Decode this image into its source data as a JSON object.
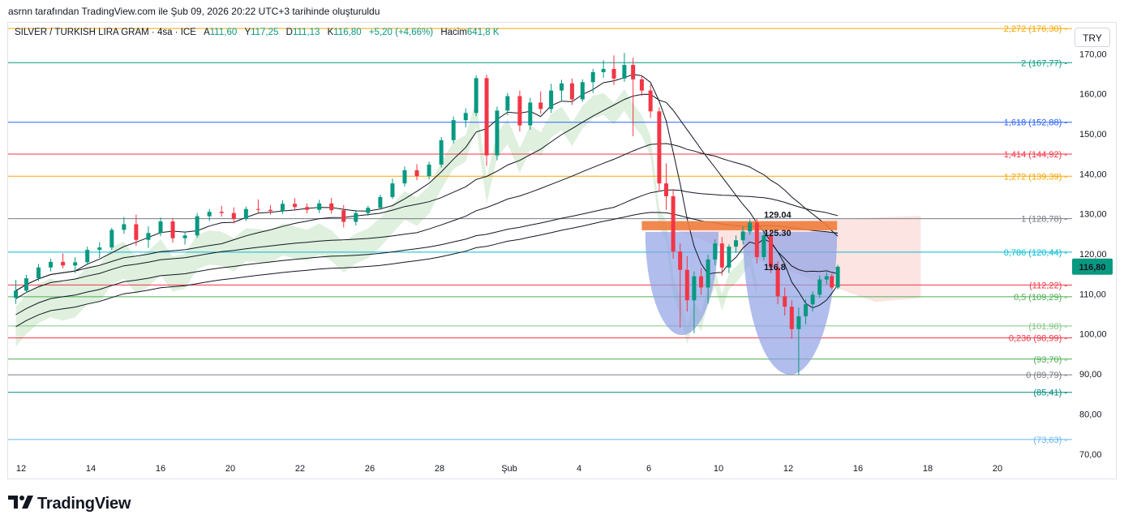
{
  "header": {
    "note": "asrnn tarafından TradingView.com ile Şub 09, 2026 20:22 UTC+3 tarihinde oluşturuldu"
  },
  "legend": {
    "symbol": "SILVER / TURKISH LIRA GRAM · 4sa · ICE",
    "open_label": "A",
    "open": "111,60",
    "high_label": "Y",
    "high": "117,25",
    "low_label": "D",
    "low": "111,13",
    "close_label": "K",
    "close": "116,80",
    "change": "+5,20 (+4,66%)",
    "volume_label": "Hacim",
    "volume": "641,8 K"
  },
  "currency_button": "TRY",
  "logo": {
    "text": "TradingView",
    "icon": "tradingview-logo-icon"
  },
  "colors": {
    "up": "#089981",
    "down": "#f23645",
    "pattern_fill": "#8fa1e6",
    "zone": "#f07c3c",
    "cloud": "#b8ddb5",
    "cloud_red": "#f8c9c5"
  },
  "chart_data": {
    "type": "candlestick",
    "symbol": "SILVER / TURKISH LIRA GRAM",
    "interval": "4sa",
    "y_axis": {
      "ylim": [
        70,
        172
      ],
      "ticks": [
        "70,00",
        "80,00",
        "90,00",
        "100,00",
        "110,00",
        "120,00",
        "130,00",
        "140,00",
        "150,00",
        "160,00",
        "170,00"
      ],
      "position": "right"
    },
    "x_axis": {
      "ticks": [
        "12",
        "14",
        "16",
        "20",
        "22",
        "26",
        "28",
        "Şub",
        "4",
        "6",
        "10",
        "12",
        "16",
        "18",
        "20"
      ],
      "tick_days": [
        12,
        14,
        16,
        18,
        20,
        22,
        24,
        26,
        28,
        30,
        32,
        34,
        36,
        38,
        40
      ]
    },
    "last_price": {
      "label": "116,80",
      "value": 116.8
    },
    "fib_levels": [
      {
        "label": "2,272 (176,30)",
        "value": 176.3,
        "color": "#f7a600"
      },
      {
        "label": "2 (167,77)",
        "value": 167.77,
        "color": "#089981"
      },
      {
        "label": "1,618 (152,88)",
        "value": 152.88,
        "color": "#2962ff"
      },
      {
        "label": "1,414 (144,92)",
        "value": 144.92,
        "color": "#f23645"
      },
      {
        "label": "1,272 (139,39)",
        "value": 139.39,
        "color": "#f7a600"
      },
      {
        "label": "1 (128,78)",
        "value": 128.78,
        "color": "#787b86"
      },
      {
        "label": "0,786 (120,44)",
        "value": 120.44,
        "color": "#00bcd4"
      },
      {
        "label": "(112,22)",
        "value": 112.22,
        "color": "#f23645"
      },
      {
        "label": "0,5 (109,29)",
        "value": 109.29,
        "color": "#4caf50"
      },
      {
        "label": "(101,98)",
        "value": 101.98,
        "color": "#81c784"
      },
      {
        "label": "0,236 (98,99)",
        "value": 98.99,
        "color": "#f23645"
      },
      {
        "label": "(93,70)",
        "value": 93.7,
        "color": "#4caf50"
      },
      {
        "label": "0 (89,79)",
        "value": 89.79,
        "color": "#787b86"
      },
      {
        "label": "(85,41)",
        "value": 85.41,
        "color": "#00897b"
      },
      {
        "label": "(73,63)",
        "value": 73.63,
        "color": "#64b5f6"
      }
    ],
    "annotations": [
      {
        "text": "129.04",
        "value": 129.04,
        "day": 32.4
      },
      {
        "text": "125.30",
        "value": 125.3,
        "day": 32.4
      },
      {
        "text": "116.8",
        "value": 116.8,
        "day": 32.4
      }
    ],
    "resistance_zone": {
      "day_start": 23.4,
      "day_end": 33.2,
      "top": 128.2,
      "bottom": 125.9
    },
    "cup_shapes": [
      {
        "day_start": 29.9,
        "day_end": 32.0,
        "top": 125.5,
        "bottom": 99.7
      },
      {
        "day_start": 32.7,
        "day_end": 35.4,
        "top": 125.5,
        "bottom": 89.8
      }
    ],
    "candles": [
      {
        "d": 11.85,
        "o": 109.0,
        "h": 113.5,
        "l": 107.5,
        "c": 110.8
      },
      {
        "d": 12.15,
        "o": 110.8,
        "h": 114.8,
        "l": 110.2,
        "c": 113.9
      },
      {
        "d": 12.5,
        "o": 113.9,
        "h": 117.5,
        "l": 113.2,
        "c": 116.6
      },
      {
        "d": 12.85,
        "o": 116.6,
        "h": 118.8,
        "l": 115.6,
        "c": 118.0
      },
      {
        "d": 13.2,
        "o": 118.0,
        "h": 120.1,
        "l": 116.4,
        "c": 117.1
      },
      {
        "d": 13.55,
        "o": 117.1,
        "h": 119.2,
        "l": 115.2,
        "c": 117.9
      },
      {
        "d": 13.9,
        "o": 117.9,
        "h": 121.8,
        "l": 117.2,
        "c": 121.0
      },
      {
        "d": 14.25,
        "o": 121.0,
        "h": 122.9,
        "l": 119.0,
        "c": 121.6
      },
      {
        "d": 14.6,
        "o": 121.6,
        "h": 126.5,
        "l": 121.0,
        "c": 126.0
      },
      {
        "d": 14.95,
        "o": 126.0,
        "h": 129.2,
        "l": 125.0,
        "c": 127.4
      },
      {
        "d": 15.3,
        "o": 127.4,
        "h": 129.8,
        "l": 122.0,
        "c": 123.5
      },
      {
        "d": 15.65,
        "o": 123.5,
        "h": 126.9,
        "l": 121.5,
        "c": 125.2
      },
      {
        "d": 16.0,
        "o": 125.2,
        "h": 129.1,
        "l": 124.4,
        "c": 128.1
      },
      {
        "d": 16.35,
        "o": 128.1,
        "h": 128.9,
        "l": 122.8,
        "c": 123.9
      },
      {
        "d": 16.7,
        "o": 123.9,
        "h": 125.6,
        "l": 122.3,
        "c": 124.6
      },
      {
        "d": 17.05,
        "o": 124.6,
        "h": 130.2,
        "l": 124.0,
        "c": 129.4
      },
      {
        "d": 17.4,
        "o": 129.4,
        "h": 131.2,
        "l": 128.2,
        "c": 130.5
      },
      {
        "d": 17.75,
        "o": 130.5,
        "h": 132.0,
        "l": 129.3,
        "c": 130.2
      },
      {
        "d": 18.1,
        "o": 130.2,
        "h": 131.6,
        "l": 127.6,
        "c": 128.7
      },
      {
        "d": 18.45,
        "o": 128.7,
        "h": 131.8,
        "l": 128.2,
        "c": 131.2
      },
      {
        "d": 18.8,
        "o": 131.2,
        "h": 133.6,
        "l": 130.3,
        "c": 131.0
      },
      {
        "d": 19.15,
        "o": 131.0,
        "h": 132.2,
        "l": 129.8,
        "c": 130.7
      },
      {
        "d": 19.5,
        "o": 130.7,
        "h": 133.4,
        "l": 130.0,
        "c": 132.5
      },
      {
        "d": 19.85,
        "o": 132.5,
        "h": 133.9,
        "l": 130.8,
        "c": 131.7
      },
      {
        "d": 20.2,
        "o": 131.7,
        "h": 132.6,
        "l": 130.1,
        "c": 131.0
      },
      {
        "d": 20.55,
        "o": 131.0,
        "h": 133.5,
        "l": 130.2,
        "c": 132.6
      },
      {
        "d": 20.9,
        "o": 132.6,
        "h": 134.0,
        "l": 130.0,
        "c": 130.9
      },
      {
        "d": 21.25,
        "o": 130.9,
        "h": 132.2,
        "l": 126.6,
        "c": 128.0
      },
      {
        "d": 21.6,
        "o": 128.0,
        "h": 131.0,
        "l": 127.1,
        "c": 130.2
      },
      {
        "d": 21.95,
        "o": 130.2,
        "h": 132.0,
        "l": 129.5,
        "c": 131.5
      },
      {
        "d": 22.3,
        "o": 131.5,
        "h": 134.8,
        "l": 131.0,
        "c": 134.2
      },
      {
        "d": 22.65,
        "o": 134.2,
        "h": 138.8,
        "l": 133.7,
        "c": 137.6
      },
      {
        "d": 23.0,
        "o": 137.6,
        "h": 141.8,
        "l": 136.8,
        "c": 140.9
      },
      {
        "d": 23.35,
        "o": 140.9,
        "h": 142.4,
        "l": 138.4,
        "c": 139.4
      },
      {
        "d": 23.7,
        "o": 139.4,
        "h": 143.0,
        "l": 138.6,
        "c": 142.3
      },
      {
        "d": 24.05,
        "o": 142.3,
        "h": 149.2,
        "l": 141.6,
        "c": 148.4
      },
      {
        "d": 24.4,
        "o": 148.4,
        "h": 154.3,
        "l": 147.6,
        "c": 153.4
      },
      {
        "d": 24.75,
        "o": 153.4,
        "h": 156.4,
        "l": 151.6,
        "c": 155.2
      },
      {
        "d": 25.05,
        "o": 155.2,
        "h": 164.6,
        "l": 154.4,
        "c": 163.9
      },
      {
        "d": 25.35,
        "o": 163.9,
        "h": 164.8,
        "l": 142.0,
        "c": 144.6
      },
      {
        "d": 25.65,
        "o": 144.6,
        "h": 156.8,
        "l": 143.4,
        "c": 155.8
      },
      {
        "d": 25.95,
        "o": 155.8,
        "h": 160.2,
        "l": 154.6,
        "c": 159.4
      },
      {
        "d": 26.3,
        "o": 159.4,
        "h": 160.8,
        "l": 150.6,
        "c": 152.1
      },
      {
        "d": 26.6,
        "o": 152.1,
        "h": 159.0,
        "l": 151.0,
        "c": 157.8
      },
      {
        "d": 26.9,
        "o": 157.8,
        "h": 160.6,
        "l": 155.0,
        "c": 156.2
      },
      {
        "d": 27.2,
        "o": 156.2,
        "h": 162.5,
        "l": 155.2,
        "c": 160.8
      },
      {
        "d": 27.5,
        "o": 160.8,
        "h": 163.5,
        "l": 158.3,
        "c": 162.6
      },
      {
        "d": 27.8,
        "o": 162.6,
        "h": 163.8,
        "l": 157.2,
        "c": 158.6
      },
      {
        "d": 28.1,
        "o": 158.6,
        "h": 163.6,
        "l": 158.0,
        "c": 162.9
      },
      {
        "d": 28.4,
        "o": 162.9,
        "h": 166.2,
        "l": 160.2,
        "c": 165.4
      },
      {
        "d": 28.7,
        "o": 165.4,
        "h": 168.4,
        "l": 164.0,
        "c": 166.2
      },
      {
        "d": 29.0,
        "o": 166.2,
        "h": 169.6,
        "l": 162.2,
        "c": 163.8
      },
      {
        "d": 29.3,
        "o": 163.8,
        "h": 170.2,
        "l": 163.0,
        "c": 167.2
      },
      {
        "d": 29.55,
        "o": 167.2,
        "h": 169.0,
        "l": 149.4,
        "c": 163.6
      },
      {
        "d": 29.8,
        "o": 163.6,
        "h": 164.6,
        "l": 159.4,
        "c": 160.8
      },
      {
        "d": 30.05,
        "o": 160.8,
        "h": 162.4,
        "l": 154.0,
        "c": 155.6
      },
      {
        "d": 30.3,
        "o": 155.6,
        "h": 156.6,
        "l": 135.6,
        "c": 137.6
      },
      {
        "d": 30.5,
        "o": 137.6,
        "h": 142.6,
        "l": 131.0,
        "c": 134.4
      },
      {
        "d": 30.7,
        "o": 134.4,
        "h": 136.2,
        "l": 118.8,
        "c": 120.6
      },
      {
        "d": 30.9,
        "o": 120.6,
        "h": 122.6,
        "l": 101.6,
        "c": 116.0
      },
      {
        "d": 31.1,
        "o": 116.0,
        "h": 119.4,
        "l": 105.6,
        "c": 108.4
      },
      {
        "d": 31.3,
        "o": 108.4,
        "h": 115.6,
        "l": 100.2,
        "c": 114.4
      },
      {
        "d": 31.5,
        "o": 114.4,
        "h": 116.4,
        "l": 109.8,
        "c": 111.6
      },
      {
        "d": 31.7,
        "o": 111.6,
        "h": 119.8,
        "l": 107.6,
        "c": 118.6
      },
      {
        "d": 31.9,
        "o": 118.6,
        "h": 123.6,
        "l": 117.2,
        "c": 122.6
      },
      {
        "d": 32.1,
        "o": 122.6,
        "h": 124.2,
        "l": 114.6,
        "c": 116.6
      },
      {
        "d": 32.3,
        "o": 116.6,
        "h": 122.4,
        "l": 115.2,
        "c": 121.8
      },
      {
        "d": 32.5,
        "o": 121.8,
        "h": 124.6,
        "l": 120.2,
        "c": 123.4
      },
      {
        "d": 32.7,
        "o": 123.4,
        "h": 126.8,
        "l": 122.4,
        "c": 125.6
      },
      {
        "d": 32.9,
        "o": 125.6,
        "h": 128.6,
        "l": 124.8,
        "c": 127.8
      },
      {
        "d": 33.1,
        "o": 127.8,
        "h": 128.9,
        "l": 117.6,
        "c": 119.2
      },
      {
        "d": 33.3,
        "o": 119.2,
        "h": 125.8,
        "l": 118.4,
        "c": 124.6
      },
      {
        "d": 33.5,
        "o": 124.6,
        "h": 125.8,
        "l": 115.2,
        "c": 116.6
      },
      {
        "d": 33.7,
        "o": 116.6,
        "h": 118.2,
        "l": 107.4,
        "c": 109.4
      },
      {
        "d": 33.9,
        "o": 109.4,
        "h": 111.6,
        "l": 104.6,
        "c": 106.8
      },
      {
        "d": 34.1,
        "o": 106.8,
        "h": 108.4,
        "l": 98.8,
        "c": 101.2
      },
      {
        "d": 34.3,
        "o": 101.2,
        "h": 106.6,
        "l": 89.8,
        "c": 104.4
      },
      {
        "d": 34.5,
        "o": 104.4,
        "h": 108.6,
        "l": 102.4,
        "c": 107.4
      },
      {
        "d": 34.7,
        "o": 107.4,
        "h": 110.6,
        "l": 105.6,
        "c": 109.8
      },
      {
        "d": 34.9,
        "o": 109.8,
        "h": 114.6,
        "l": 109.0,
        "c": 113.6
      },
      {
        "d": 35.1,
        "o": 113.6,
        "h": 115.4,
        "l": 112.4,
        "c": 114.4
      },
      {
        "d": 35.25,
        "o": 114.4,
        "h": 115.0,
        "l": 111.2,
        "c": 111.6
      },
      {
        "d": 35.42,
        "o": 111.6,
        "h": 117.25,
        "l": 111.13,
        "c": 116.8
      }
    ]
  }
}
